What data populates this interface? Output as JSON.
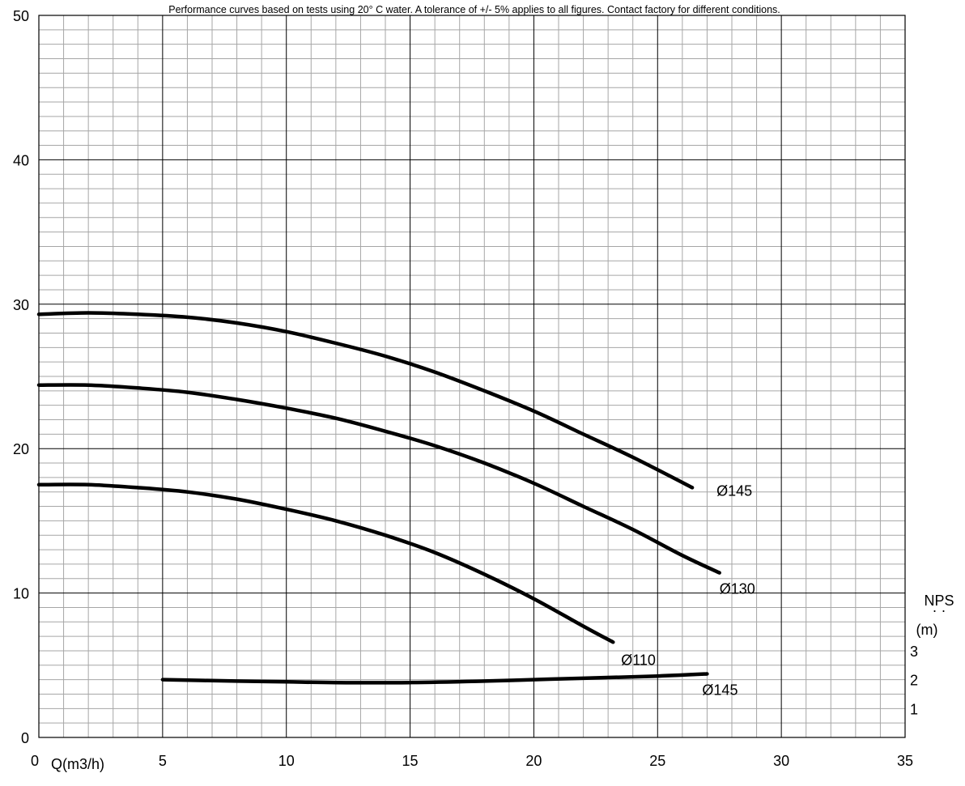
{
  "chart_data": {
    "type": "line",
    "note": "Performance curves based on tests using 20° C water. A tolerance of +/- 5% applies to all figures. Contact factory for different conditions.",
    "xlabel": "Q(m3/h)",
    "ylabel": "",
    "xlim": [
      0,
      35
    ],
    "ylim": [
      0,
      50
    ],
    "x_ticks": [
      "0",
      "5",
      "10",
      "15",
      "20",
      "25",
      "30",
      "35"
    ],
    "y_ticks": [
      "0",
      "10",
      "20",
      "30",
      "40",
      "50"
    ],
    "grid": true,
    "npsh_axis": {
      "label_top": "NPS",
      "label_dots": "· ·",
      "unit": "(m)",
      "ticks": [
        "1",
        "2",
        "3"
      ],
      "scale_per_unit": 2
    },
    "series": [
      {
        "name": "Ø145",
        "kind": "head",
        "x": [
          0,
          2,
          4,
          6,
          8,
          10,
          12,
          14,
          16,
          18,
          20,
          22,
          24,
          26.4
        ],
        "y": [
          29.3,
          29.4,
          29.3,
          29.1,
          28.7,
          28.1,
          27.3,
          26.4,
          25.3,
          24.0,
          22.6,
          21.0,
          19.4,
          17.3
        ]
      },
      {
        "name": "Ø130",
        "kind": "head",
        "x": [
          0,
          2,
          4,
          6,
          8,
          10,
          12,
          14,
          16,
          18,
          20,
          22,
          24,
          26,
          27.5
        ],
        "y": [
          24.4,
          24.4,
          24.2,
          23.9,
          23.4,
          22.8,
          22.1,
          21.2,
          20.2,
          19.0,
          17.6,
          16.0,
          14.4,
          12.6,
          11.4
        ]
      },
      {
        "name": "Ø110",
        "kind": "head",
        "x": [
          0,
          2,
          4,
          6,
          8,
          10,
          12,
          14,
          16,
          18,
          20,
          22,
          23.2
        ],
        "y": [
          17.5,
          17.5,
          17.3,
          17.0,
          16.5,
          15.8,
          15.0,
          14.0,
          12.8,
          11.3,
          9.6,
          7.7,
          6.6
        ]
      },
      {
        "name": "Ø145",
        "kind": "npsh",
        "x": [
          5,
          8,
          10,
          12,
          15,
          18,
          20,
          22,
          25,
          27
        ],
        "y": [
          4.0,
          3.9,
          3.85,
          3.8,
          3.8,
          3.9,
          4.0,
          4.1,
          4.25,
          4.4
        ]
      }
    ]
  }
}
